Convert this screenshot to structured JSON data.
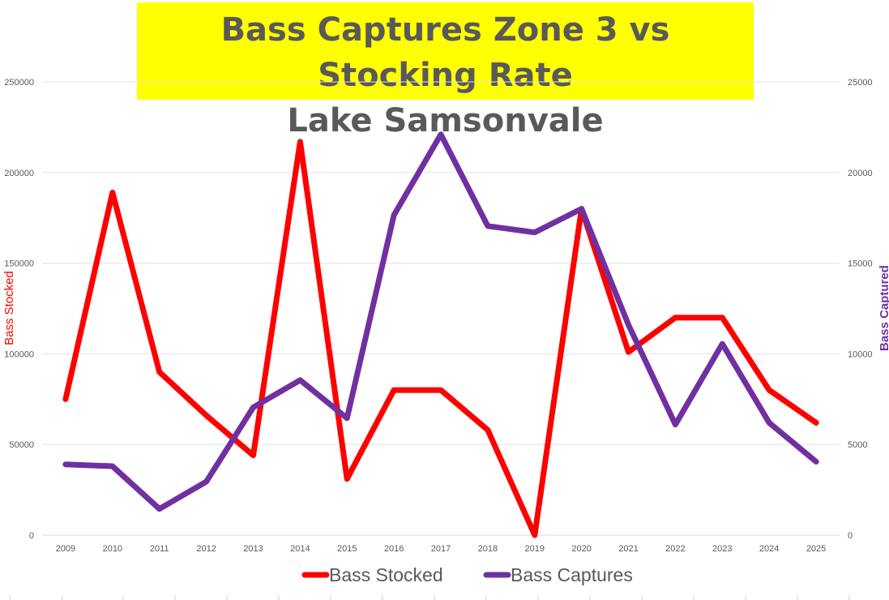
{
  "chart_data": {
    "type": "line",
    "title": [
      "Bass Captures Zone 3 vs Stocking Rate",
      "Lake Samsonvale"
    ],
    "title_background": "#ffff00",
    "categories": [
      "2009",
      "2010",
      "2011",
      "2012",
      "2013",
      "2014",
      "2015",
      "2016",
      "2017",
      "2018",
      "2019",
      "2020",
      "2021",
      "2022",
      "2023",
      "2024",
      "2025"
    ],
    "left_axis": {
      "label": "Bass Stocked",
      "color": "#ff0000",
      "ylim": [
        0,
        250000
      ],
      "ticks": [
        "0",
        "50000",
        "100000",
        "150000",
        "200000",
        "250000"
      ]
    },
    "right_axis": {
      "label": "Bass Captured",
      "color": "#7030a0",
      "ylim": [
        0,
        25000
      ],
      "ticks": [
        "0",
        "5000",
        "10000",
        "15000",
        "20000",
        "25000"
      ]
    },
    "series": [
      {
        "name": "Bass Stocked",
        "axis": "left",
        "color": "#ff0000",
        "values": [
          75000,
          189000,
          90000,
          66000,
          44000,
          217000,
          31000,
          80000,
          80000,
          58000,
          0,
          180000,
          101000,
          120000,
          120000,
          80000,
          62000
        ]
      },
      {
        "name": "Bass Captures",
        "axis": "right",
        "color": "#7030a0",
        "values": [
          3900,
          3800,
          1450,
          2950,
          7050,
          8550,
          6450,
          17650,
          22100,
          17050,
          16700,
          18000,
          11600,
          6100,
          10550,
          6200,
          4050
        ]
      }
    ],
    "grid": true,
    "legend_position": "bottom"
  }
}
